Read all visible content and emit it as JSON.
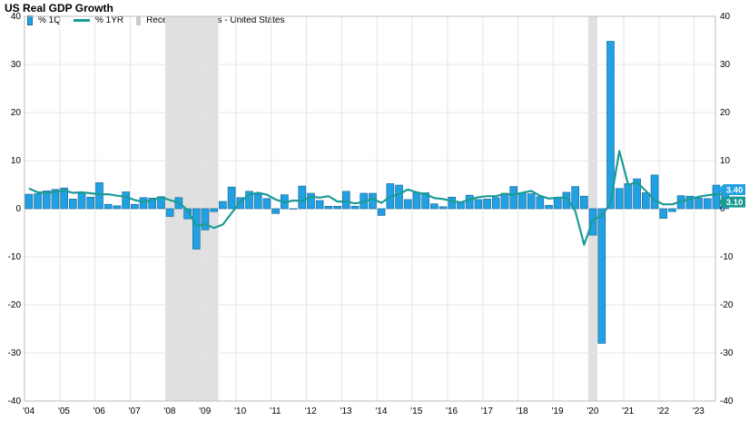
{
  "title": "US Real GDP Growth",
  "legend": {
    "q1": "% 1Q",
    "yr1": "% 1YR",
    "recession": "Recession Periods - United States"
  },
  "colors": {
    "bar": "#21a1e4",
    "bar_stroke": "#1a6a99",
    "line": "#1a9c94",
    "recession": "#e0e0e0",
    "grid": "#e5e5e5"
  },
  "chart_data": {
    "type": "bar",
    "x_tick_labels": [
      "'04",
      "'05",
      "'06",
      "'07",
      "'08",
      "'09",
      "'10",
      "'11",
      "'12",
      "'13",
      "'14",
      "'15",
      "'16",
      "'17",
      "'18",
      "'19",
      "'20",
      "'21",
      "'22",
      "'23"
    ],
    "ylim": [
      -40,
      40
    ],
    "y_ticks": [
      -40,
      -30,
      -20,
      -10,
      0,
      10,
      20,
      30,
      40
    ],
    "grid": true,
    "recessions": [
      [
        2008.0,
        2009.5
      ],
      [
        2020.0,
        2020.25
      ]
    ],
    "series": [
      {
        "name": "% 1Q",
        "type": "bar",
        "start": 2004.0,
        "step": 0.25,
        "values": [
          3.0,
          3.1,
          3.7,
          4.0,
          4.3,
          2.0,
          3.2,
          2.4,
          5.4,
          0.9,
          0.6,
          3.5,
          0.9,
          2.3,
          2.2,
          2.5,
          -1.6,
          2.3,
          -2.1,
          -8.4,
          -4.4,
          -0.6,
          1.5,
          4.5,
          2.3,
          3.6,
          3.0,
          2.1,
          -1.0,
          2.9,
          -0.1,
          4.7,
          3.2,
          1.7,
          0.5,
          0.5,
          3.6,
          0.5,
          3.2,
          3.2,
          -1.4,
          5.2,
          4.9,
          1.9,
          3.3,
          3.3,
          1.0,
          0.4,
          2.4,
          1.2,
          2.8,
          1.9,
          2.0,
          2.3,
          3.2,
          4.6,
          3.3,
          3.1,
          2.5,
          0.7,
          2.2,
          3.4,
          4.6,
          2.6,
          -5.5,
          -28.0,
          34.8,
          4.2,
          5.2,
          6.2,
          3.3,
          7.0,
          -2.0,
          -0.6,
          2.7,
          2.6,
          2.2,
          2.1,
          4.9,
          3.4
        ]
      },
      {
        "name": "% 1YR",
        "type": "line",
        "start": 2004.0,
        "step": 0.25,
        "values": [
          4.2,
          3.4,
          3.3,
          3.5,
          3.8,
          3.3,
          3.4,
          3.2,
          3.0,
          3.0,
          2.7,
          2.5,
          1.8,
          1.4,
          1.8,
          2.4,
          1.8,
          1.3,
          -0.3,
          -3.6,
          -3.2,
          -4.0,
          -3.3,
          -0.9,
          1.5,
          2.9,
          3.3,
          2.9,
          1.9,
          1.3,
          1.7,
          1.6,
          2.5,
          2.3,
          2.6,
          1.5,
          1.5,
          1.1,
          1.4,
          2.1,
          1.2,
          2.5,
          3.0,
          4.0,
          3.4,
          3.0,
          2.2,
          2.0,
          1.6,
          1.3,
          1.9,
          2.4,
          2.6,
          2.6,
          3.1,
          2.9,
          3.3,
          3.7,
          2.7,
          2.1,
          2.3,
          2.3,
          -0.5,
          -7.5,
          -2.3,
          -1.5,
          1.2,
          12.0,
          5.0,
          5.5,
          3.7,
          1.8,
          0.9,
          0.9,
          1.5,
          2.0,
          2.5,
          2.8,
          3.0,
          3.1
        ]
      }
    ],
    "last_value_labels": {
      "q1": "3.40",
      "yr1": "3.10"
    }
  }
}
